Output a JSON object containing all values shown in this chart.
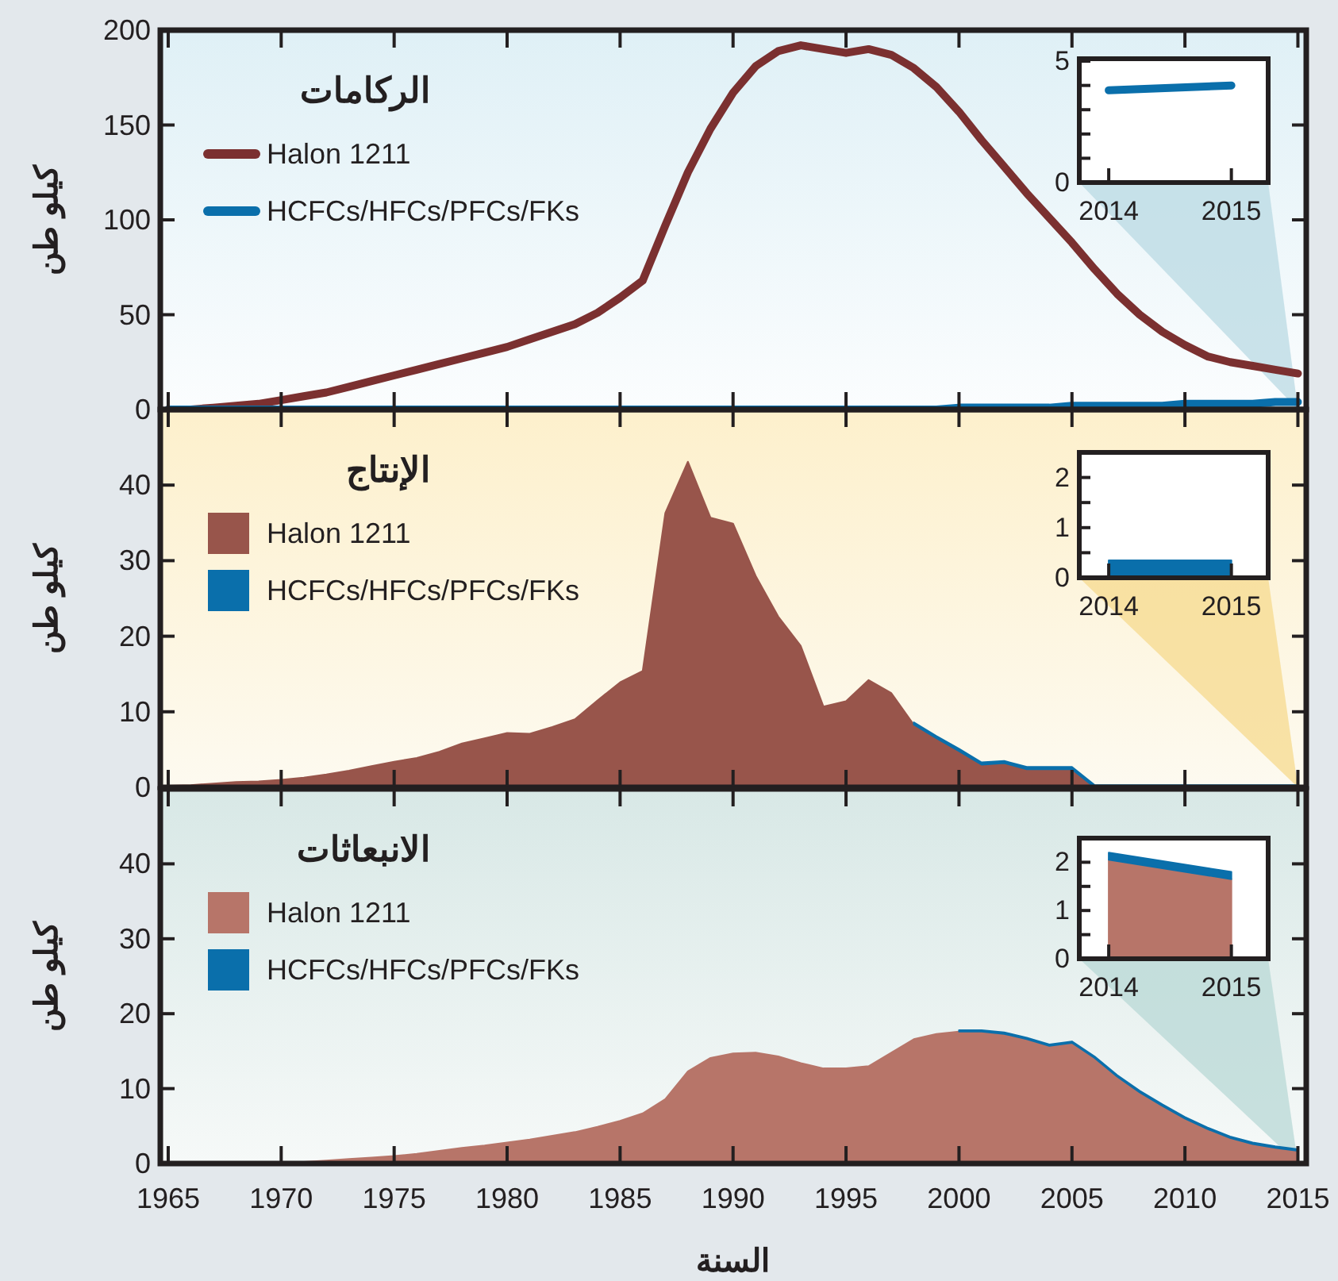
{
  "chart_data": [
    {
      "type": "line",
      "legend_title": "الركامات",
      "ylabel": "كيلو طن",
      "legend": "top left",
      "tick_labels": "y",
      "grid": false,
      "line_style": "solid",
      "x": [
        1965,
        1966,
        1967,
        1968,
        1969,
        1970,
        1971,
        1972,
        1973,
        1974,
        1975,
        1976,
        1977,
        1978,
        1979,
        1980,
        1981,
        1982,
        1983,
        1984,
        1985,
        1986,
        1987,
        1988,
        1989,
        1990,
        1991,
        1992,
        1993,
        1994,
        1995,
        1996,
        1997,
        1998,
        1999,
        2000,
        2001,
        2002,
        2003,
        2004,
        2005,
        2006,
        2007,
        2008,
        2009,
        2010,
        2011,
        2012,
        2013,
        2014,
        2015
      ],
      "series": [
        {
          "name": "Halon 1211",
          "color": "#7b3030",
          "values": [
            0,
            0,
            1,
            2,
            3,
            5,
            7,
            9,
            12,
            15,
            18,
            21,
            24,
            27,
            30,
            33,
            37,
            41,
            45,
            51,
            59,
            68,
            97,
            125,
            148,
            167,
            181,
            189,
            192,
            190,
            188,
            190,
            187,
            180,
            170,
            157,
            142,
            128,
            114,
            101,
            88,
            74,
            61,
            50,
            41,
            34,
            28,
            25,
            23,
            21,
            19
          ]
        },
        {
          "name": "HCFCs/HFCs/PFCs/FKs",
          "color": "#0a6fab",
          "values": [
            0,
            0,
            0,
            0,
            0,
            0,
            0,
            0,
            0,
            0,
            0,
            0,
            0,
            0,
            0,
            0,
            0,
            0,
            0,
            0,
            0,
            0,
            0,
            0,
            0,
            0,
            0,
            0,
            0,
            0,
            0,
            0,
            0,
            0,
            0,
            1,
            1,
            1,
            1,
            1,
            2,
            2,
            2,
            2,
            2,
            3,
            3,
            3,
            3,
            4,
            4
          ]
        }
      ],
      "xlim": [
        1964.65,
        2015.37
      ],
      "xticks": [
        1965,
        1970,
        1975,
        1980,
        1985,
        1990,
        1995,
        2000,
        2005,
        2010,
        2015
      ],
      "ylim": [
        0,
        200
      ],
      "yticks": [
        0,
        50,
        100,
        150,
        200
      ]
    },
    {
      "type": "line",
      "grid": false,
      "line_style": "solid",
      "x": [
        2014,
        2015
      ],
      "series": [
        {
          "color": "#0a6fab",
          "values": [
            3.8,
            4.0
          ]
        }
      ],
      "xlim": [
        2013.76,
        2015.3
      ],
      "xticks": [
        2014,
        2015
      ],
      "ylim": [
        0,
        5.1
      ],
      "yticks": [
        0,
        {
          "value": 1,
          "label": null
        },
        {
          "value": 2,
          "label": null
        },
        {
          "value": 3,
          "label": null
        },
        {
          "value": 4,
          "label": null
        },
        5
      ]
    },
    {
      "type": "area",
      "stacked": true,
      "legend_title": "الإنتاج",
      "ylabel": "كيلو طن",
      "legend": "top left",
      "tick_labels": "y",
      "grid": false,
      "x": [
        1965,
        1966,
        1967,
        1968,
        1969,
        1970,
        1971,
        1972,
        1973,
        1974,
        1975,
        1976,
        1977,
        1978,
        1979,
        1980,
        1981,
        1982,
        1983,
        1984,
        1985,
        1986,
        1987,
        1988,
        1989,
        1990,
        1991,
        1992,
        1993,
        1994,
        1995,
        1996,
        1997,
        1998,
        1999,
        2000,
        2001,
        2002,
        2003,
        2004,
        2005,
        2006,
        2007,
        2008,
        2009,
        2010,
        2011,
        2012,
        2013,
        2014,
        2015
      ],
      "series": [
        {
          "name": "Halon 1211",
          "color": "#98554b",
          "values": [
            0.2,
            0.3,
            0.5,
            0.7,
            0.8,
            1,
            1.3,
            1.7,
            2.2,
            2.8,
            3.4,
            3.9,
            4.7,
            5.8,
            6.5,
            7.2,
            7.1,
            8,
            9,
            11.5,
            13.9,
            15.4,
            36.3,
            43.1,
            35.7,
            34.9,
            28,
            22.6,
            18.7,
            10.7,
            11.4,
            14.2,
            12.5,
            8.3,
            6.5,
            4.8,
            3,
            3.2,
            2.4,
            2.4,
            2.4,
            0,
            0,
            0,
            0,
            0,
            0,
            0,
            0,
            0,
            0
          ]
        },
        {
          "name": "HCFCs/HFCs/PFCs/FKs",
          "color": "#0a6fab",
          "values": [
            null,
            null,
            null,
            null,
            null,
            null,
            null,
            null,
            null,
            null,
            null,
            null,
            null,
            null,
            null,
            null,
            null,
            null,
            null,
            null,
            null,
            null,
            null,
            null,
            null,
            null,
            null,
            null,
            null,
            null,
            null,
            null,
            null,
            0.3,
            0.3,
            0.3,
            0.3,
            0.3,
            0.3,
            0.3,
            0.3,
            0.3,
            0.3,
            0.3,
            0.3,
            0.3,
            0.3,
            0.3,
            0.3,
            0.3,
            0.3
          ]
        }
      ],
      "xlim": [
        1964.65,
        2015.37
      ],
      "xticks": [
        1965,
        1970,
        1975,
        1980,
        1985,
        1990,
        1995,
        2000,
        2005,
        2010,
        2015
      ],
      "ylim": [
        0,
        50
      ],
      "yticks": [
        0,
        10,
        20,
        30,
        40
      ]
    },
    {
      "type": "area",
      "stacked": true,
      "grid": false,
      "x": [
        2014,
        2015
      ],
      "series": [
        {
          "color": "#0a6fab",
          "values": [
            0.35,
            0.35
          ]
        }
      ],
      "xlim": [
        2013.76,
        2015.3
      ],
      "xticks": [
        2014,
        2015
      ],
      "ylim": [
        0,
        2.5
      ],
      "yticks": [
        0,
        {
          "value": 0.5,
          "label": null
        },
        1,
        {
          "value": 1.5,
          "label": null
        },
        2
      ]
    },
    {
      "type": "area",
      "stacked": true,
      "legend_title": "الانبعاثات",
      "ylabel": "كيلو طن",
      "xlabel": "السنة",
      "legend": "top left",
      "grid": false,
      "x": [
        1965,
        1966,
        1967,
        1968,
        1969,
        1970,
        1971,
        1972,
        1973,
        1974,
        1975,
        1976,
        1977,
        1978,
        1979,
        1980,
        1981,
        1982,
        1983,
        1984,
        1985,
        1986,
        1987,
        1988,
        1989,
        1990,
        1991,
        1992,
        1993,
        1994,
        1995,
        1996,
        1997,
        1998,
        1999,
        2000,
        2001,
        2002,
        2003,
        2004,
        2005,
        2006,
        2007,
        2008,
        2009,
        2010,
        2011,
        2012,
        2013,
        2014,
        2015
      ],
      "series": [
        {
          "name": "Halon 1211",
          "color": "#b77569",
          "values": [
            0,
            0,
            0,
            0,
            0,
            0.1,
            0.2,
            0.4,
            0.6,
            0.8,
            1,
            1.3,
            1.7,
            2.1,
            2.4,
            2.8,
            3.2,
            3.7,
            4.2,
            4.9,
            5.7,
            6.7,
            8.6,
            12.3,
            14.1,
            14.7,
            14.8,
            14.3,
            13.4,
            12.7,
            12.7,
            13,
            14.8,
            16.6,
            17.3,
            17.6,
            17.6,
            17.3,
            16.6,
            15.7,
            16.1,
            14.1,
            11.6,
            9.5,
            7.7,
            6,
            4.6,
            3.4,
            2.6,
            2.1,
            1.7
          ]
        },
        {
          "name": "HCFCs/HFCs/PFCs/FKs",
          "color": "#0a6fab",
          "values": [
            null,
            null,
            null,
            null,
            null,
            null,
            null,
            null,
            null,
            null,
            null,
            null,
            null,
            null,
            null,
            null,
            null,
            null,
            null,
            null,
            null,
            null,
            null,
            null,
            null,
            null,
            null,
            null,
            null,
            null,
            null,
            null,
            null,
            null,
            null,
            0.2,
            0.2,
            0.2,
            0.2,
            0.2,
            0.2,
            0.2,
            0.2,
            0.2,
            0.2,
            0.2,
            0.2,
            0.2,
            0.2,
            0.2,
            0.2
          ]
        }
      ],
      "xlim": [
        1964.65,
        2015.37
      ],
      "xticks": [
        1965,
        1970,
        1975,
        1980,
        1985,
        1990,
        1995,
        2000,
        2005,
        2010,
        2015
      ],
      "ylim": [
        0,
        50
      ],
      "yticks": [
        0,
        10,
        20,
        30,
        40
      ]
    },
    {
      "type": "area",
      "stacked": true,
      "grid": false,
      "x": [
        2014,
        2015
      ],
      "series": [
        {
          "color": "#b77569",
          "values": [
            2.05,
            1.65
          ]
        },
        {
          "color": "#0a6fab",
          "values": [
            0.15,
            0.15
          ]
        }
      ],
      "xlim": [
        2013.76,
        2015.3
      ],
      "xticks": [
        2014,
        2015
      ],
      "ylim": [
        0,
        2.5
      ],
      "yticks": [
        0,
        {
          "value": 0.5,
          "label": null
        },
        1,
        {
          "value": 1.5,
          "label": null
        },
        2
      ]
    }
  ]
}
